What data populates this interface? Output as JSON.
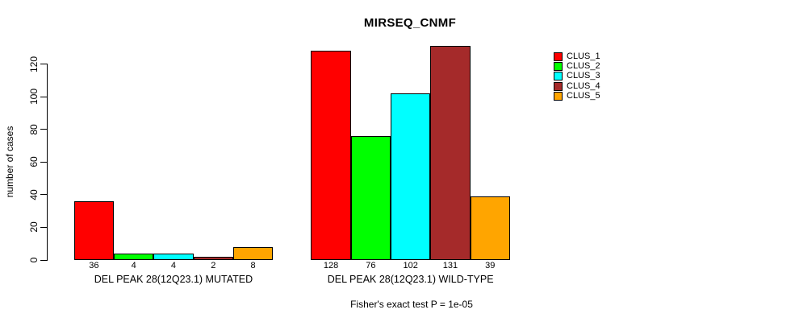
{
  "chart_data": {
    "type": "bar",
    "title": "MIRSEQ_CNMF",
    "ylabel": "number of cases",
    "xlabel": "",
    "ylim": [
      0,
      131
    ],
    "yticks": [
      0,
      20,
      40,
      60,
      80,
      100,
      120
    ],
    "grid": false,
    "legend_position": "right",
    "categories": [
      "DEL PEAK 28(12Q23.1) MUTATED",
      "DEL PEAK 28(12Q23.1) WILD-TYPE"
    ],
    "series": [
      {
        "name": "CLUS_1",
        "color": "#FF0000",
        "values": [
          36,
          128
        ]
      },
      {
        "name": "CLUS_2",
        "color": "#00FF00",
        "values": [
          4,
          76
        ]
      },
      {
        "name": "CLUS_3",
        "color": "#00FFFF",
        "values": [
          4,
          102
        ]
      },
      {
        "name": "CLUS_4",
        "color": "#A52A2A",
        "values": [
          2,
          131
        ]
      },
      {
        "name": "CLUS_5",
        "color": "#FFA500",
        "values": [
          8,
          39
        ]
      }
    ],
    "bar_outline_color": "#000000",
    "background_color": "#FFFFFF",
    "annotation": "Fisher's exact test P = 1e-05"
  }
}
